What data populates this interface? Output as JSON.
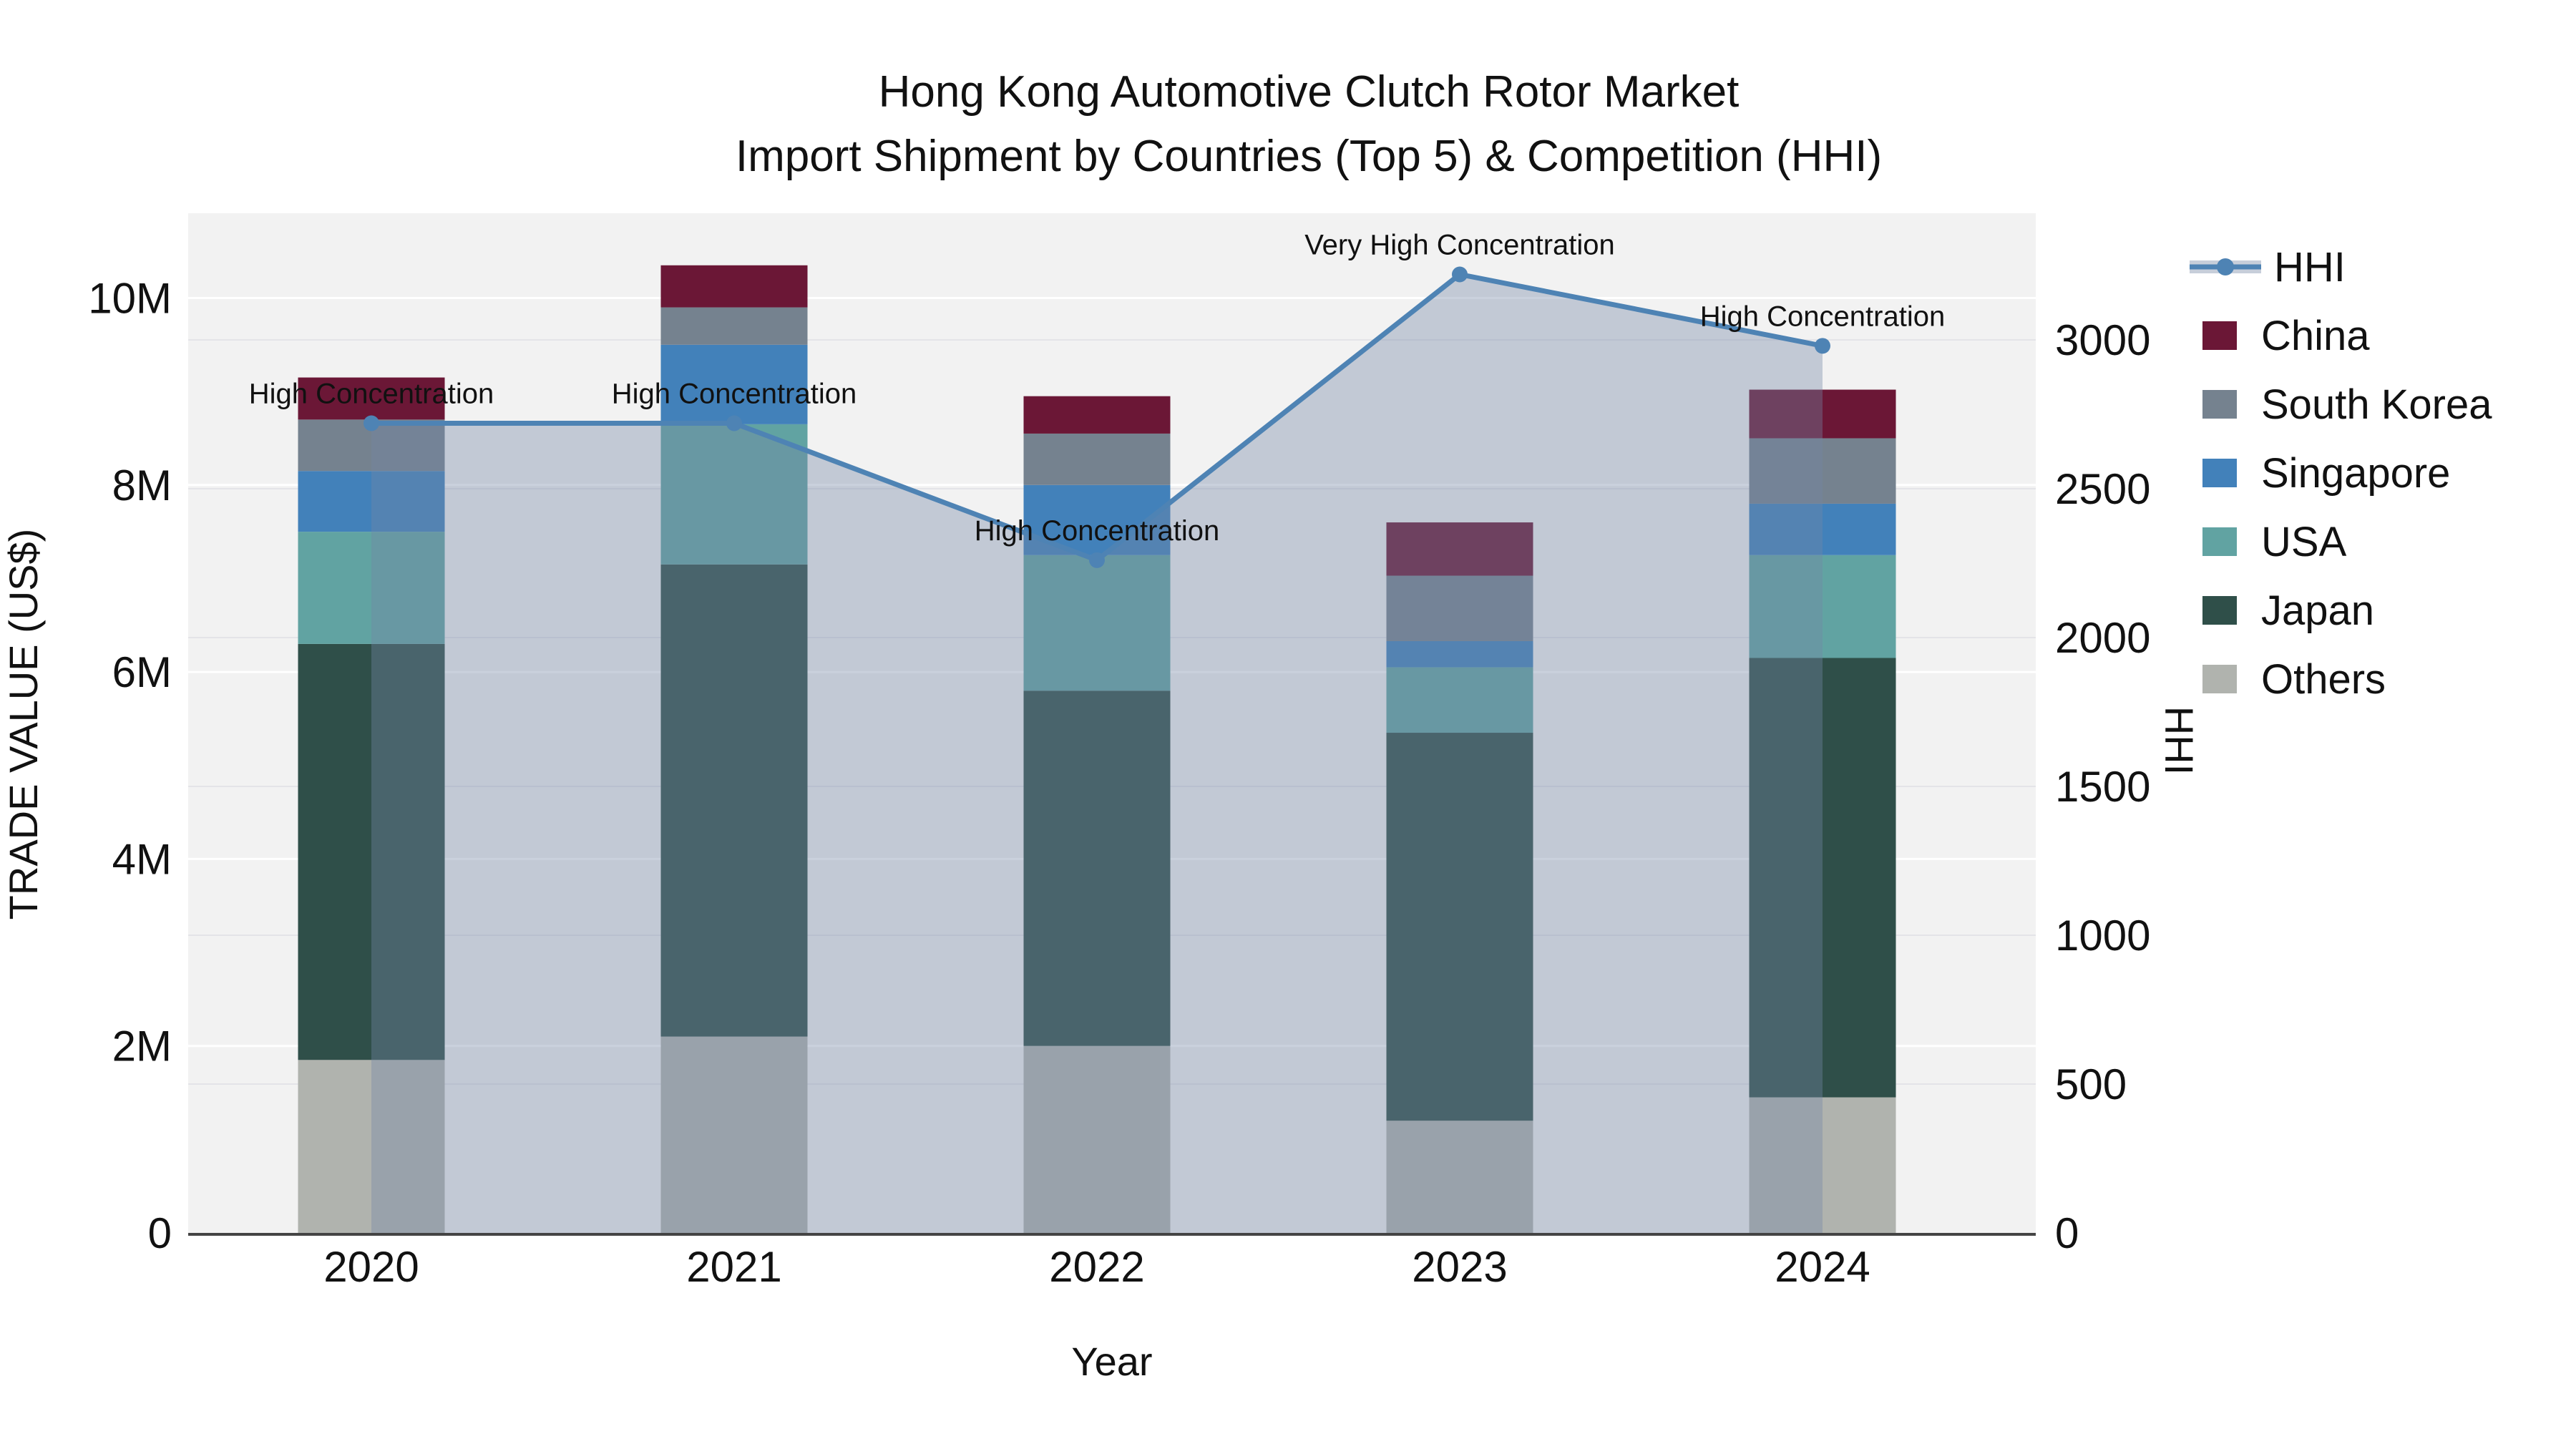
{
  "title": {
    "line1": "Hong Kong Automotive Clutch Rotor Market",
    "line2": "Import Shipment by Countries (Top 5) & Competition (HHI)"
  },
  "axes": {
    "x": {
      "title": "Year",
      "ticks": [
        "2020",
        "2021",
        "2022",
        "2023",
        "2024"
      ]
    },
    "left": {
      "title": "TRADE VALUE (US$)",
      "ticks": [
        {
          "label": "0",
          "value": 0
        },
        {
          "label": "2M",
          "value": 2
        },
        {
          "label": "4M",
          "value": 4
        },
        {
          "label": "6M",
          "value": 6
        },
        {
          "label": "8M",
          "value": 8
        },
        {
          "label": "10M",
          "value": 10
        }
      ]
    },
    "right": {
      "title": "HHI",
      "ticks": [
        {
          "label": "0",
          "value": 0
        },
        {
          "label": "500",
          "value": 500
        },
        {
          "label": "1000",
          "value": 1000
        },
        {
          "label": "1500",
          "value": 1500
        },
        {
          "label": "2000",
          "value": 2000
        },
        {
          "label": "2500",
          "value": 2500
        },
        {
          "label": "3000",
          "value": 3000
        }
      ]
    }
  },
  "chart_data": {
    "type": "bar",
    "subtype": "stacked-bars-with-line-area",
    "categories": [
      "2020",
      "2021",
      "2022",
      "2023",
      "2024"
    ],
    "value_unit": "USD millions",
    "series": [
      {
        "name": "Others",
        "color": "#B0B3AE",
        "values": [
          1.85,
          2.1,
          2.0,
          1.2,
          1.45
        ]
      },
      {
        "name": "Japan",
        "color": "#2F4F49",
        "values": [
          4.45,
          5.05,
          3.8,
          4.15,
          4.7
        ]
      },
      {
        "name": "USA",
        "color": "#61A3A2",
        "values": [
          1.2,
          1.5,
          1.45,
          0.7,
          1.1
        ]
      },
      {
        "name": "Singapore",
        "color": "#4281BA",
        "values": [
          0.65,
          0.85,
          0.75,
          0.28,
          0.55
        ]
      },
      {
        "name": "South Korea",
        "color": "#75828F",
        "values": [
          0.55,
          0.4,
          0.55,
          0.7,
          0.7
        ]
      },
      {
        "name": "China",
        "color": "#6B1736",
        "values": [
          0.45,
          0.45,
          0.4,
          0.57,
          0.52
        ]
      }
    ],
    "line_series": {
      "name": "HHI",
      "color": "#4E83B4",
      "area_color": "rgba(115,135,165,0.38)",
      "values": [
        2720,
        2720,
        2260,
        3220,
        2980
      ]
    },
    "annotations": [
      {
        "category": "2020",
        "text": "High Concentration"
      },
      {
        "category": "2021",
        "text": "High Concentration"
      },
      {
        "category": "2022",
        "text": "High Concentration"
      },
      {
        "category": "2023",
        "text": "Very High Concentration"
      },
      {
        "category": "2024",
        "text": "High Concentration"
      }
    ],
    "left_axis_range_musd": [
      0,
      10.9
    ],
    "right_axis_range": [
      0,
      3425
    ],
    "grid": "on",
    "legend_position": "right"
  },
  "legend": {
    "items": [
      {
        "label": "HHI",
        "swatch": "line",
        "color": "#4E83B4",
        "band_color": "#C7CEDA"
      },
      {
        "label": "China",
        "swatch": "box",
        "color": "#6B1736"
      },
      {
        "label": "South Korea",
        "swatch": "box",
        "color": "#75828F"
      },
      {
        "label": "Singapore",
        "swatch": "box",
        "color": "#4281BA"
      },
      {
        "label": "USA",
        "swatch": "box",
        "color": "#61A3A2"
      },
      {
        "label": "Japan",
        "swatch": "box",
        "color": "#2F4F49"
      },
      {
        "label": "Others",
        "swatch": "box",
        "color": "#B0B3AE"
      }
    ]
  },
  "colors": {
    "figure_background": "#FFFFFF",
    "plot_background": "#F2F2F2",
    "grid_left": "#FFFFFF",
    "grid_right": "#E4E4E8",
    "axis_line": "#444444",
    "text": "#111111"
  }
}
